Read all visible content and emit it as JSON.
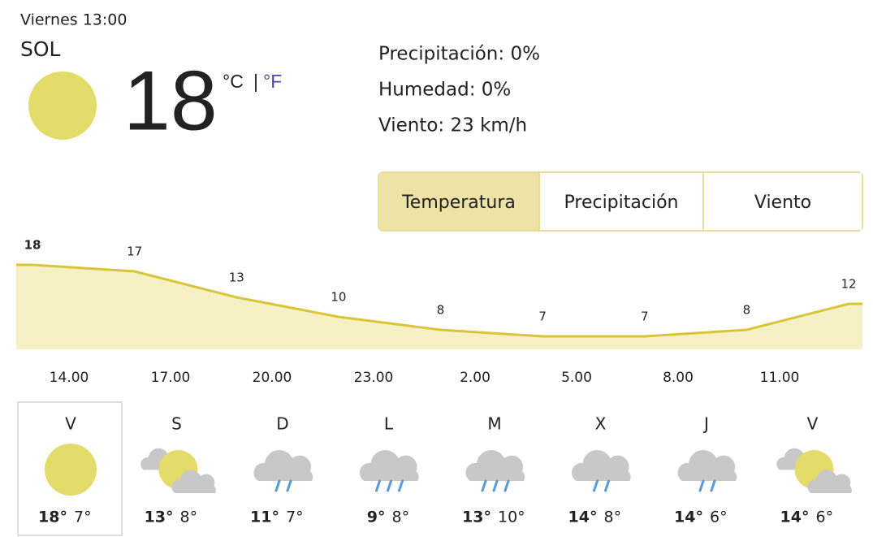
{
  "header": {
    "datetime": "Viernes 13:00",
    "condition": "SOL",
    "temperature": "18",
    "unit_c": "°C",
    "separator": "|",
    "unit_f": "°F"
  },
  "details": [
    "Precipitación: 0%",
    "Humedad: 0%",
    "Viento: 23 km/h"
  ],
  "tabs": [
    "Temperatura",
    "Precipitación",
    "Viento"
  ],
  "chart_data": {
    "type": "area",
    "values": [
      18,
      17,
      13,
      10,
      8,
      7,
      7,
      8,
      12
    ],
    "color": "#d9c43a",
    "x_labels": [
      "14.00",
      "17.00",
      "20.00",
      "23.00",
      "2.00",
      "5.00",
      "8.00",
      "11.00"
    ]
  },
  "forecast": [
    {
      "day": "V",
      "high": "18°",
      "low": "7°"
    },
    {
      "day": "S",
      "high": "13°",
      "low": "8°"
    },
    {
      "day": "D",
      "high": "11°",
      "low": "7°"
    },
    {
      "day": "L",
      "high": "9°",
      "low": "8°"
    },
    {
      "day": "M",
      "high": "13°",
      "low": "10°"
    },
    {
      "day": "X",
      "high": "14°",
      "low": "8°"
    },
    {
      "day": "J",
      "high": "14°",
      "low": "6°"
    },
    {
      "day": "V",
      "high": "14°",
      "low": "6°"
    }
  ]
}
